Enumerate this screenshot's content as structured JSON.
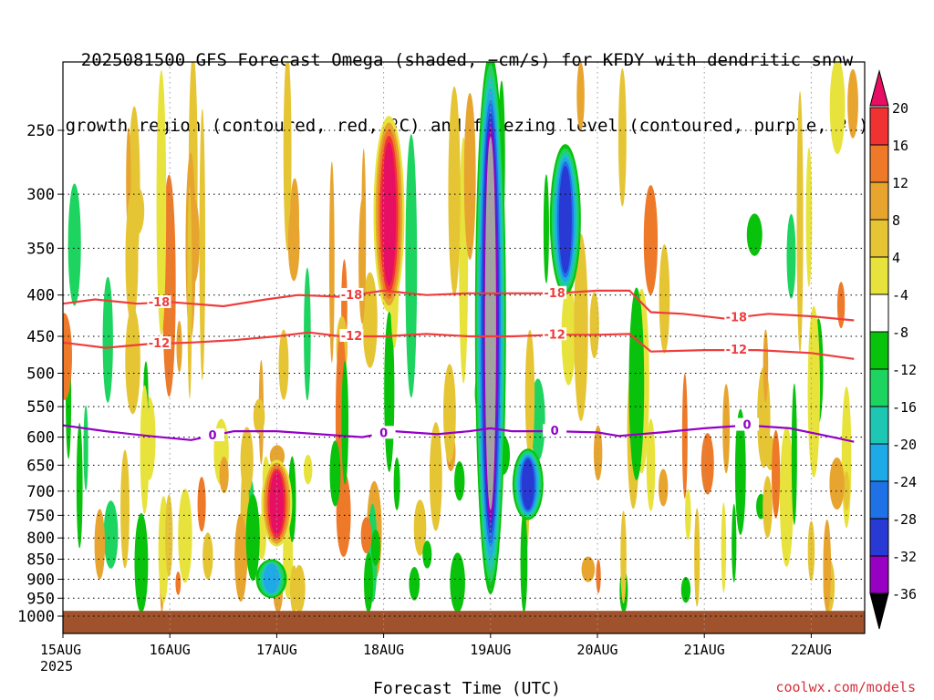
{
  "title_line1": "2025081500 GFS Forecast Omega (shaded, −cm/s) for KFDY with dendritic snow",
  "title_line2": "growth region (contoured, red, ºC) and freezing level (contoured, purple, ºC)",
  "watermark": "coolwx.com/models",
  "chart_data": {
    "type": "heatmap",
    "title": "2025081500 GFS Forecast Omega (shaded, −cm/s) for KFDY with dendritic snow growth region (contoured, red, ºC) and freezing level (contoured, purple, ºC)",
    "xlabel": "Forecast Time (UTC)",
    "ylabel": "",
    "x_ticks": [
      "15AUG",
      "16AUG",
      "17AUG",
      "18AUG",
      "19AUG",
      "20AUG",
      "21AUG",
      "22AUG"
    ],
    "x_tick_sublabel": "2025",
    "x_range_days": [
      0,
      7.4
    ],
    "y_ticks": [
      250,
      300,
      350,
      400,
      450,
      500,
      550,
      600,
      650,
      700,
      750,
      800,
      850,
      900,
      950,
      1000
    ],
    "y_range_hpa": [
      1020,
      200
    ],
    "colorbar": {
      "labels": [
        20,
        16,
        12,
        8,
        4,
        -4,
        -8,
        -12,
        -16,
        -20,
        -24,
        -28,
        -32,
        -36
      ],
      "colors": [
        "#e60f64",
        "#f03232",
        "#ee7a29",
        "#e7a530",
        "#e6c535",
        "#e8e33c",
        "#ffffff",
        "#09c20b",
        "#1cd45f",
        "#1ec7b3",
        "#1eaae6",
        "#1f72e6",
        "#2939d4",
        "#5a20c8",
        "#9700c3",
        "#a3a3a3",
        "#000000"
      ]
    },
    "contours": [
      {
        "name": "dendritic growth -18",
        "label": "-18",
        "color": "#ef3d3d",
        "points": [
          [
            0,
            410
          ],
          [
            0.3,
            405
          ],
          [
            0.7,
            410
          ],
          [
            1.0,
            408
          ],
          [
            1.5,
            413
          ],
          [
            1.9,
            405
          ],
          [
            2.2,
            400
          ],
          [
            2.6,
            402
          ],
          [
            3.0,
            395
          ],
          [
            3.4,
            400
          ],
          [
            3.8,
            398
          ],
          [
            4.2,
            398
          ],
          [
            4.6,
            398
          ],
          [
            5.0,
            395
          ],
          [
            5.3,
            395
          ],
          [
            5.5,
            420
          ],
          [
            5.8,
            422
          ],
          [
            6.2,
            428
          ],
          [
            6.6,
            422
          ],
          [
            7.0,
            425
          ],
          [
            7.4,
            430
          ]
        ]
      },
      {
        "name": "dendritic growth -12",
        "label": "-12",
        "color": "#ef3d3d",
        "points": [
          [
            0,
            458
          ],
          [
            0.4,
            465
          ],
          [
            0.8,
            460
          ],
          [
            1.2,
            458
          ],
          [
            1.6,
            455
          ],
          [
            2.0,
            450
          ],
          [
            2.3,
            445
          ],
          [
            2.6,
            450
          ],
          [
            3.0,
            450
          ],
          [
            3.4,
            447
          ],
          [
            3.8,
            450
          ],
          [
            4.2,
            450
          ],
          [
            4.6,
            448
          ],
          [
            5.0,
            448
          ],
          [
            5.3,
            447
          ],
          [
            5.5,
            470
          ],
          [
            6.0,
            468
          ],
          [
            6.5,
            468
          ],
          [
            7.0,
            472
          ],
          [
            7.4,
            480
          ]
        ]
      },
      {
        "name": "freezing level 0",
        "label": "0",
        "color": "#9400c8",
        "points": [
          [
            0,
            580
          ],
          [
            0.4,
            590
          ],
          [
            0.8,
            598
          ],
          [
            1.2,
            605
          ],
          [
            1.6,
            590
          ],
          [
            2.0,
            590
          ],
          [
            2.4,
            595
          ],
          [
            2.8,
            600
          ],
          [
            3.1,
            590
          ],
          [
            3.5,
            595
          ],
          [
            3.8,
            590
          ],
          [
            4.0,
            585
          ],
          [
            4.2,
            590
          ],
          [
            4.6,
            590
          ],
          [
            5.0,
            592
          ],
          [
            5.2,
            598
          ],
          [
            5.6,
            592
          ],
          [
            6.0,
            585
          ],
          [
            6.4,
            580
          ],
          [
            6.8,
            585
          ],
          [
            7.2,
            600
          ],
          [
            7.4,
            608
          ]
        ]
      }
    ],
    "shading_features": [
      {
        "day": 4.0,
        "p_top": 200,
        "p_bot": 940,
        "omega": -36,
        "desc": "strong ascent column"
      },
      {
        "day": 3.05,
        "p_top": 240,
        "p_bot": 420,
        "omega": 20
      },
      {
        "day": 4.7,
        "p_top": 260,
        "p_bot": 400,
        "omega": -28
      },
      {
        "day": 4.35,
        "p_top": 620,
        "p_bot": 760,
        "omega": -28
      },
      {
        "day": 2.0,
        "p_top": 640,
        "p_bot": 820,
        "omega": 20
      },
      {
        "day": 1.95,
        "p_top": 850,
        "p_bot": 950,
        "omega": -20
      }
    ],
    "surface_fill_color": "#a0522d"
  }
}
